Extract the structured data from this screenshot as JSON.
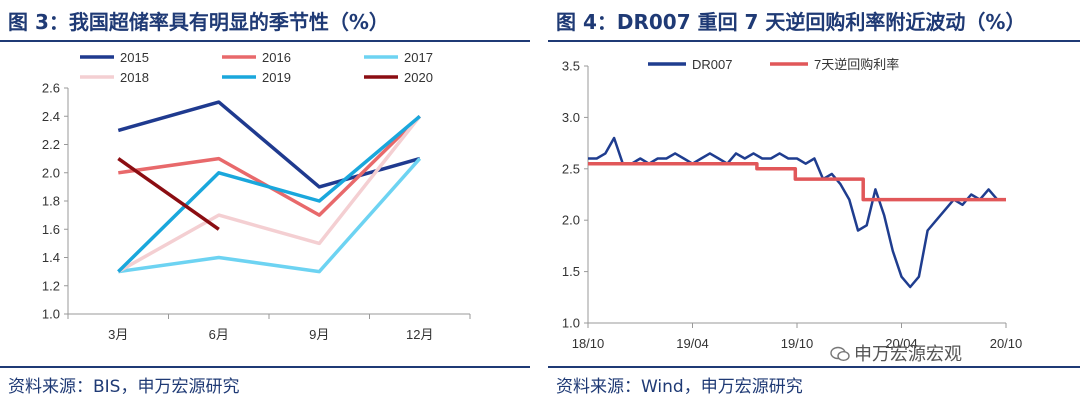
{
  "left": {
    "title": "图 3：我国超储率具有明显的季节性（%）",
    "source": "资料来源：BIS，申万宏源研究"
  },
  "right": {
    "title": "图 4：DR007 重回 7 天逆回购利率附近波动（%）",
    "source": "资料来源：Wind，申万宏源研究"
  },
  "watermark": "申万宏源宏观",
  "chart_data": [
    {
      "type": "line",
      "title": "图 3：我国超储率具有明显的季节性（%）",
      "categories": [
        "3月",
        "6月",
        "9月",
        "12月"
      ],
      "ylim": [
        1.0,
        2.6
      ],
      "yticks": [
        "1.0",
        "1.2",
        "1.4",
        "1.6",
        "1.8",
        "2.0",
        "2.2",
        "2.4",
        "2.6"
      ],
      "legend_position": "top",
      "series": [
        {
          "name": "2015",
          "color": "#1f3a8f",
          "values": [
            2.3,
            2.5,
            1.9,
            2.1
          ]
        },
        {
          "name": "2016",
          "color": "#e8696b",
          "values": [
            2.0,
            2.1,
            1.7,
            2.4
          ]
        },
        {
          "name": "2017",
          "color": "#6dd3f2",
          "values": [
            1.3,
            1.4,
            1.3,
            2.1
          ]
        },
        {
          "name": "2018",
          "color": "#f4cfd2",
          "values": [
            1.3,
            1.7,
            1.5,
            2.4
          ]
        },
        {
          "name": "2019",
          "color": "#1aa7dc",
          "values": [
            1.3,
            2.0,
            1.8,
            2.4
          ]
        },
        {
          "name": "2020",
          "color": "#8b0d12",
          "values": [
            2.1,
            1.6,
            null,
            null
          ]
        }
      ]
    },
    {
      "type": "line",
      "title": "图 4：DR007 重回 7 天逆回购利率附近波动（%）",
      "x_ticks": [
        "18/10",
        "19/04",
        "19/10",
        "20/04",
        "20/10"
      ],
      "x_range": [
        "2018-10",
        "2020-10"
      ],
      "ylim": [
        1.0,
        3.5
      ],
      "yticks": [
        "1.0",
        "1.5",
        "2.0",
        "2.5",
        "3.0",
        "3.5"
      ],
      "legend_position": "top",
      "series": [
        {
          "name": "DR007",
          "color": "#1f3d8f",
          "x": [
            0.0,
            0.5,
            1.0,
            1.5,
            2.0,
            2.5,
            3.0,
            3.5,
            4.0,
            4.5,
            5.0,
            5.5,
            6.0,
            6.5,
            7.0,
            7.5,
            8.0,
            8.5,
            9.0,
            9.5,
            10.0,
            10.5,
            11.0,
            11.5,
            12.0,
            12.5,
            13.0,
            13.5,
            14.0,
            14.5,
            15.0,
            15.5,
            16.0,
            16.5,
            17.0,
            17.5,
            18.0,
            18.5,
            19.0,
            19.5,
            20.0,
            20.5,
            21.0,
            21.5,
            22.0,
            22.5,
            23.0,
            23.5,
            24.0
          ],
          "values": [
            2.6,
            2.6,
            2.65,
            2.8,
            2.55,
            2.55,
            2.6,
            2.55,
            2.6,
            2.6,
            2.65,
            2.6,
            2.55,
            2.6,
            2.65,
            2.6,
            2.55,
            2.65,
            2.6,
            2.65,
            2.6,
            2.6,
            2.65,
            2.6,
            2.6,
            2.55,
            2.6,
            2.4,
            2.45,
            2.35,
            2.2,
            1.9,
            1.95,
            2.3,
            2.05,
            1.7,
            1.45,
            1.35,
            1.45,
            1.9,
            2.0,
            2.1,
            2.2,
            2.15,
            2.25,
            2.2,
            2.3,
            2.2,
            2.2
          ]
        },
        {
          "name": "7天逆回购利率",
          "color": "#e15759",
          "x": [
            0,
            9.7,
            9.7,
            11.9,
            11.9,
            15.8,
            15.8,
            24
          ],
          "values": [
            2.55,
            2.55,
            2.5,
            2.5,
            2.4,
            2.4,
            2.2,
            2.2
          ]
        }
      ]
    }
  ]
}
